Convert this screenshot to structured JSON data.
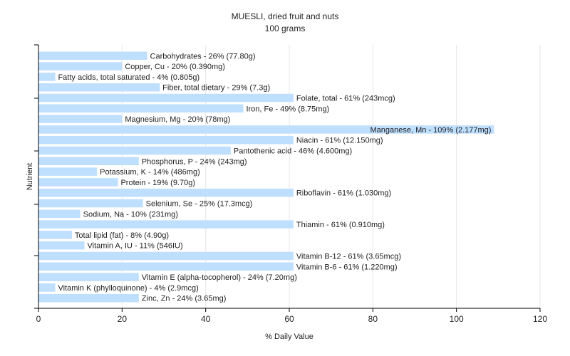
{
  "chart_data": {
    "type": "bar",
    "orientation": "horizontal",
    "title": "MUESLI, dried fruit and nuts",
    "subtitle": "100 grams",
    "xlabel": "% Daily Value",
    "ylabel": "Nutrient",
    "xlim": [
      0,
      120
    ],
    "xticks": [
      0,
      20,
      40,
      60,
      80,
      100,
      120
    ],
    "grid": "vertical",
    "colors": {
      "bar": "#bfdfff",
      "grid": "#e6e6e6",
      "axis": "#000000",
      "text": "#222222"
    },
    "categories": [
      "Carbohydrates",
      "Copper, Cu",
      "Fatty acids, total saturated",
      "Fiber, total dietary",
      "Folate, total",
      "Iron, Fe",
      "Magnesium, Mg",
      "Manganese, Mn",
      "Niacin",
      "Pantothenic acid",
      "Phosphorus, P",
      "Potassium, K",
      "Protein",
      "Riboflavin",
      "Selenium, Se",
      "Sodium, Na",
      "Thiamin",
      "Total lipid (fat)",
      "Vitamin A, IU",
      "Vitamin B-12",
      "Vitamin B-6",
      "Vitamin E (alpha-tocopherol)",
      "Vitamin K (phylloquinone)",
      "Zinc, Zn"
    ],
    "values": [
      26,
      20,
      4,
      29,
      61,
      49,
      20,
      109,
      61,
      46,
      24,
      14,
      19,
      61,
      25,
      10,
      61,
      8,
      11,
      61,
      61,
      24,
      4,
      24
    ],
    "labels": [
      "Carbohydrates - 26% (77.80g)",
      "Copper, Cu - 20% (0.390mg)",
      "Fatty acids, total saturated - 4% (0.805g)",
      "Fiber, total dietary - 29% (7.3g)",
      "Folate, total - 61% (243mcg)",
      "Iron, Fe - 49% (8.75mg)",
      "Magnesium, Mg - 20% (78mg)",
      "Manganese, Mn - 109% (2.177mg)",
      "Niacin - 61% (12.150mg)",
      "Pantothenic acid - 46% (4.600mg)",
      "Phosphorus, P - 24% (243mg)",
      "Potassium, K - 14% (486mg)",
      "Protein - 19% (9.70g)",
      "Riboflavin - 61% (1.030mg)",
      "Selenium, Se - 25% (17.3mcg)",
      "Sodium, Na - 10% (231mg)",
      "Thiamin - 61% (0.910mg)",
      "Total lipid (fat) - 8% (4.90g)",
      "Vitamin A, IU - 11% (546IU)",
      "Vitamin B-12 - 61% (3.65mcg)",
      "Vitamin B-6 - 61% (1.220mg)",
      "Vitamin E (alpha-tocopherol) - 24% (7.20mg)",
      "Vitamin K (phylloquinone) - 4% (2.9mcg)",
      "Zinc, Zn - 24% (3.65mg)"
    ]
  }
}
